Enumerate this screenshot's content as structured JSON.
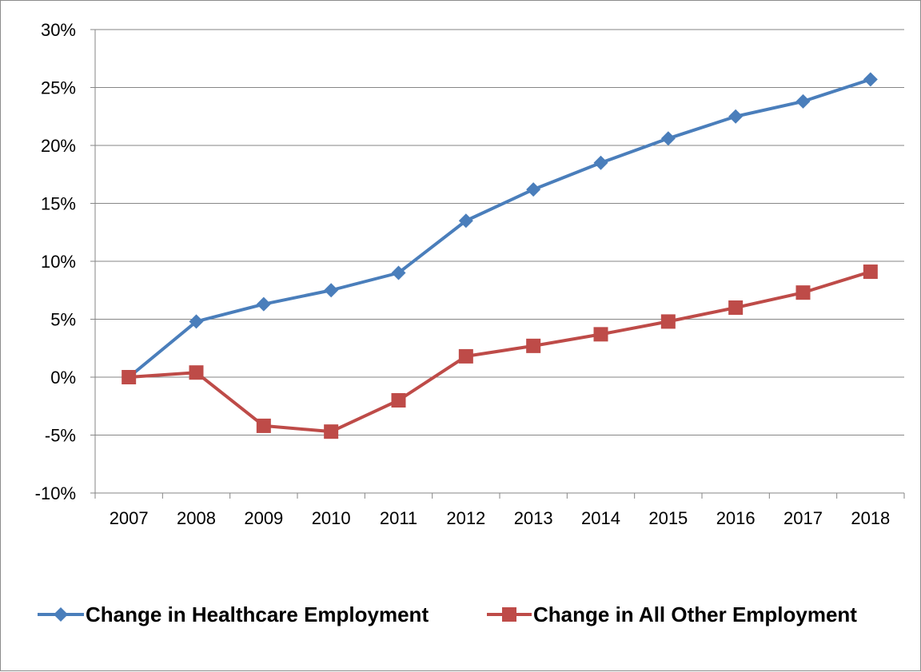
{
  "chart_data": {
    "type": "line",
    "title": "",
    "xlabel": "",
    "ylabel": "",
    "categories": [
      "2007",
      "2008",
      "2009",
      "2010",
      "2011",
      "2012",
      "2013",
      "2014",
      "2015",
      "2016",
      "2017",
      "2018"
    ],
    "ylim": [
      -10,
      30
    ],
    "ytick_values": [
      -10,
      -5,
      0,
      5,
      10,
      15,
      20,
      25,
      30
    ],
    "ytick_labels": [
      "-10%",
      "-5%",
      "0%",
      "5%",
      "10%",
      "15%",
      "20%",
      "25%",
      "30%"
    ],
    "grid": "horizontal",
    "legend_position": "bottom",
    "series": [
      {
        "name": "Change in Healthcare Employment",
        "color": "#4a7ebb",
        "marker": "diamond",
        "values": [
          0,
          4.8,
          6.3,
          7.5,
          9.0,
          13.5,
          16.2,
          18.5,
          20.6,
          22.5,
          23.8,
          25.7
        ]
      },
      {
        "name": "Change in All Other Employment",
        "color": "#be4b48",
        "marker": "square",
        "values": [
          0,
          0.4,
          -4.2,
          -4.7,
          -2.0,
          1.8,
          2.7,
          3.7,
          4.8,
          6.0,
          7.3,
          9.1
        ]
      }
    ]
  }
}
